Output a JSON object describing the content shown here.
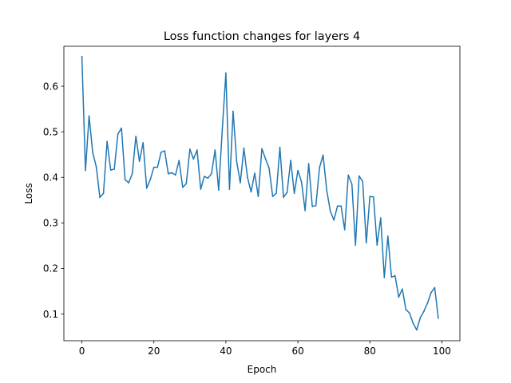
{
  "chart_data": {
    "type": "line",
    "title": "Loss function changes for layers 4",
    "xlabel": "Epoch",
    "ylabel": "Loss",
    "xlim": [
      -5,
      105
    ],
    "ylim": [
      0.0414,
      0.6876
    ],
    "xticks": [
      0,
      20,
      40,
      60,
      80,
      100
    ],
    "xtick_labels": [
      "0",
      "20",
      "40",
      "60",
      "80",
      "100"
    ],
    "yticks": [
      0.1,
      0.2,
      0.3,
      0.4,
      0.5,
      0.6
    ],
    "ytick_labels": [
      "0.1",
      "0.2",
      "0.3",
      "0.4",
      "0.5",
      "0.6"
    ],
    "grid": false,
    "series": [
      {
        "color": "#1f77b4",
        "x": [
          0,
          1,
          2,
          3,
          4,
          5,
          6,
          7,
          8,
          9,
          10,
          11,
          12,
          13,
          14,
          15,
          16,
          17,
          18,
          19,
          20,
          21,
          22,
          23,
          24,
          25,
          26,
          27,
          28,
          29,
          30,
          31,
          32,
          33,
          34,
          35,
          36,
          37,
          38,
          39,
          40,
          41,
          42,
          43,
          44,
          45,
          46,
          47,
          48,
          49,
          50,
          51,
          52,
          53,
          54,
          55,
          56,
          57,
          58,
          59,
          60,
          61,
          62,
          63,
          64,
          65,
          66,
          67,
          68,
          69,
          70,
          71,
          72,
          73,
          74,
          75,
          76,
          77,
          78,
          79,
          80,
          81,
          82,
          83,
          84,
          85,
          86,
          87,
          88,
          89,
          90,
          91,
          92,
          93,
          94,
          95,
          96,
          97,
          98,
          99
        ],
        "values": [
          0.665,
          0.415,
          0.535,
          0.455,
          0.423,
          0.356,
          0.365,
          0.479,
          0.416,
          0.418,
          0.495,
          0.508,
          0.395,
          0.388,
          0.408,
          0.49,
          0.435,
          0.476,
          0.376,
          0.395,
          0.422,
          0.422,
          0.455,
          0.458,
          0.408,
          0.41,
          0.405,
          0.437,
          0.378,
          0.386,
          0.462,
          0.44,
          0.46,
          0.374,
          0.402,
          0.398,
          0.408,
          0.46,
          0.372,
          0.505,
          0.629,
          0.374,
          0.545,
          0.435,
          0.388,
          0.464,
          0.4,
          0.368,
          0.409,
          0.358,
          0.463,
          0.441,
          0.42,
          0.358,
          0.365,
          0.466,
          0.356,
          0.367,
          0.437,
          0.365,
          0.415,
          0.39,
          0.327,
          0.43,
          0.336,
          0.338,
          0.421,
          0.449,
          0.372,
          0.326,
          0.306,
          0.337,
          0.337,
          0.285,
          0.405,
          0.385,
          0.251,
          0.403,
          0.391,
          0.256,
          0.358,
          0.357,
          0.251,
          0.311,
          0.18,
          0.271,
          0.181,
          0.184,
          0.137,
          0.155,
          0.11,
          0.102,
          0.08,
          0.065,
          0.092,
          0.106,
          0.124,
          0.147,
          0.158,
          0.091
        ]
      }
    ]
  }
}
